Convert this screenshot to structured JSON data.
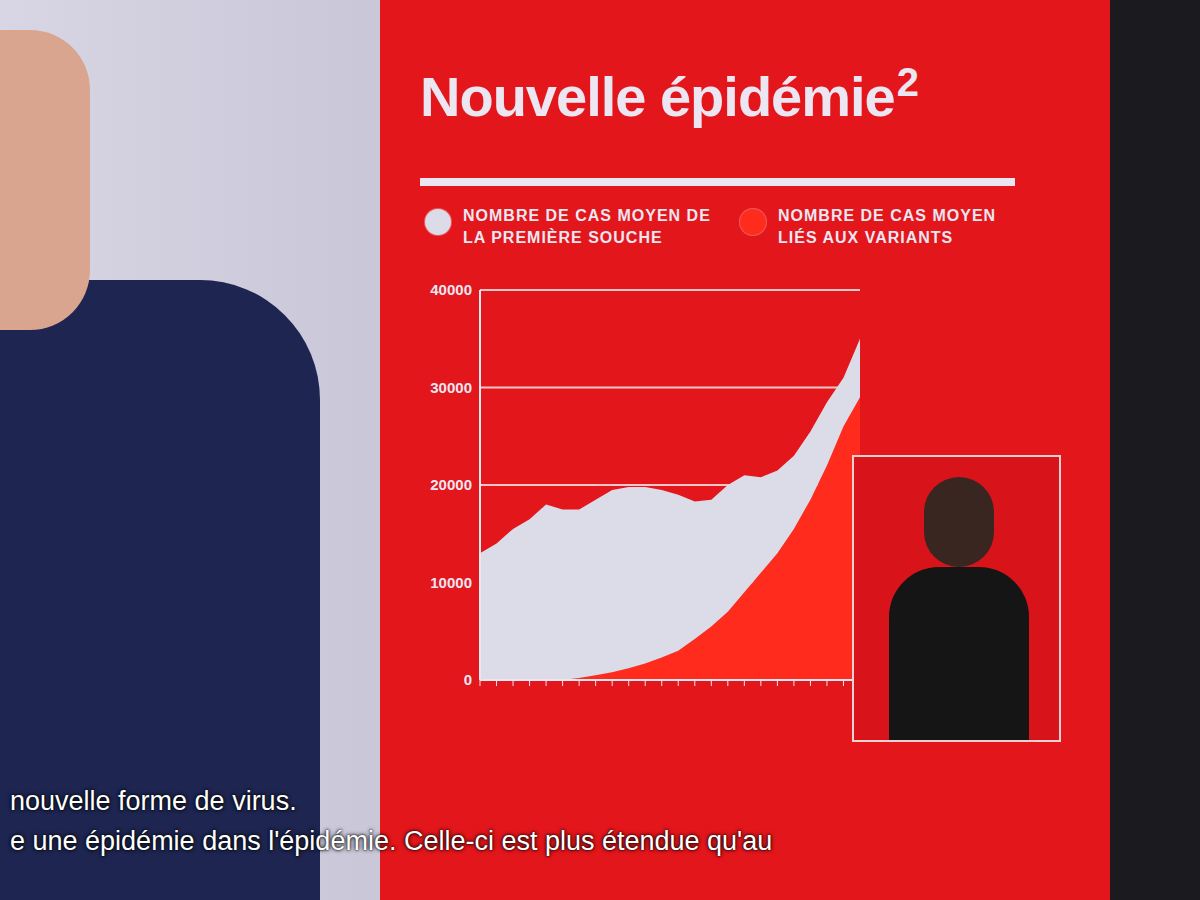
{
  "chart_data": {
    "type": "area",
    "title": "Nouvelle épidémie",
    "annotations": [
      "2",
      "nouvelle forme de virus.",
      "e une épidémie dans l'épidémie. Celle-ci est plus étendue qu'au"
    ],
    "categories": [
      null,
      null,
      null,
      null,
      null,
      null,
      null,
      null,
      null,
      null,
      null,
      null,
      null,
      null,
      null,
      null,
      null,
      null,
      null,
      null,
      null,
      null,
      null,
      null
    ],
    "series": [
      {
        "name": "NOMBRE DE CAS MOYEN DE LA PREMIÈRE SOUCHE",
        "color": "#dcdbe8",
        "values": [
          13000,
          14000,
          15500,
          16500,
          18000,
          17500,
          17300,
          18000,
          18700,
          18600,
          18100,
          17200,
          16000,
          14100,
          13000,
          13000,
          12000,
          9800,
          8500,
          7500,
          7000,
          6500,
          5000,
          6000
        ]
      },
      {
        "name": "NOMBRE DE CAS MOYEN LIÉS AUX VARIANTS",
        "color": "#ff2b1c",
        "values": [
          0,
          0,
          0,
          0,
          0,
          0,
          200,
          500,
          800,
          1200,
          1700,
          2300,
          3000,
          4200,
          5500,
          7000,
          9000,
          11000,
          13000,
          15500,
          18500,
          22000,
          26000,
          29000
        ]
      }
    ],
    "stacked": true,
    "ylim": [
      0,
      40000
    ],
    "yticks": [
      0,
      10000,
      20000,
      30000,
      40000
    ],
    "grid": true
  }
}
